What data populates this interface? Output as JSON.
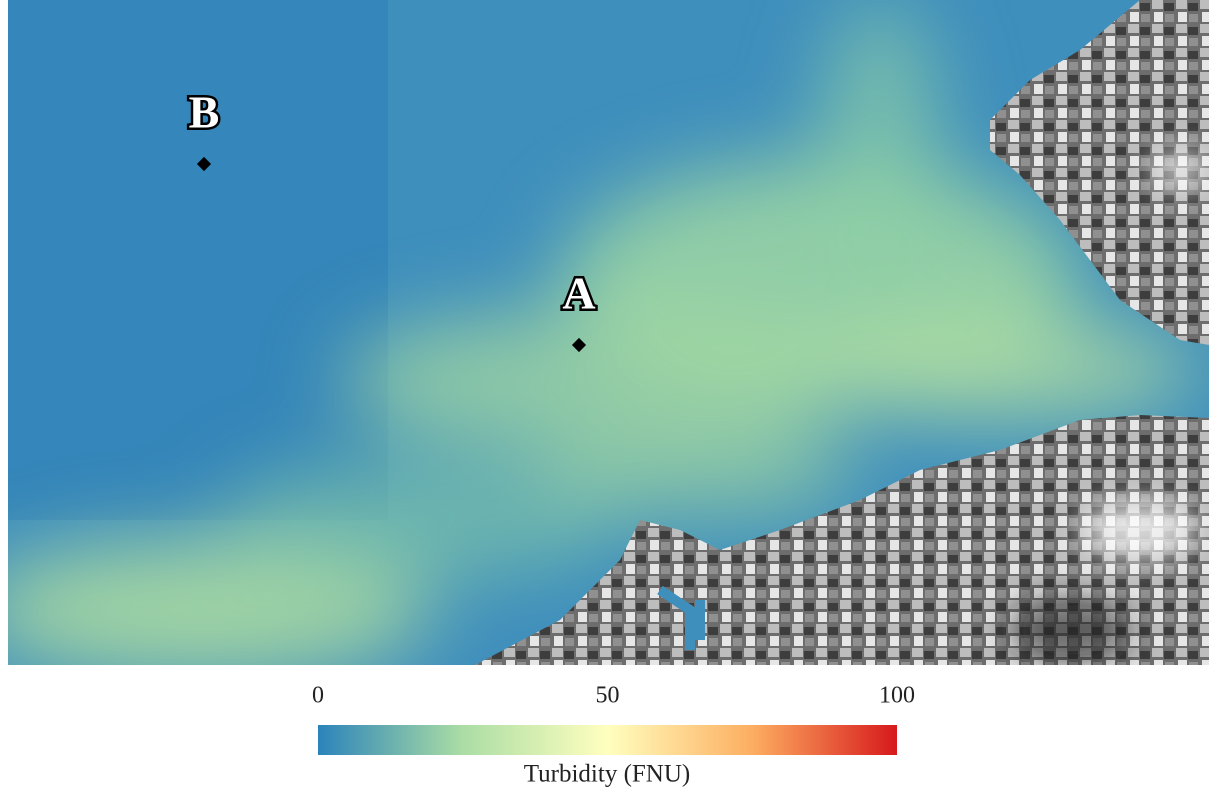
{
  "map": {
    "markers": [
      {
        "label": "A"
      },
      {
        "label": "B"
      }
    ]
  },
  "colorbar": {
    "label": "Turbidity (FNU)",
    "range": [
      0,
      100
    ],
    "ticks": [
      0,
      50,
      100
    ],
    "colors": [
      "#2b83ba",
      "#abdda4",
      "#ffffbf",
      "#fdae61",
      "#d7191c"
    ]
  }
}
